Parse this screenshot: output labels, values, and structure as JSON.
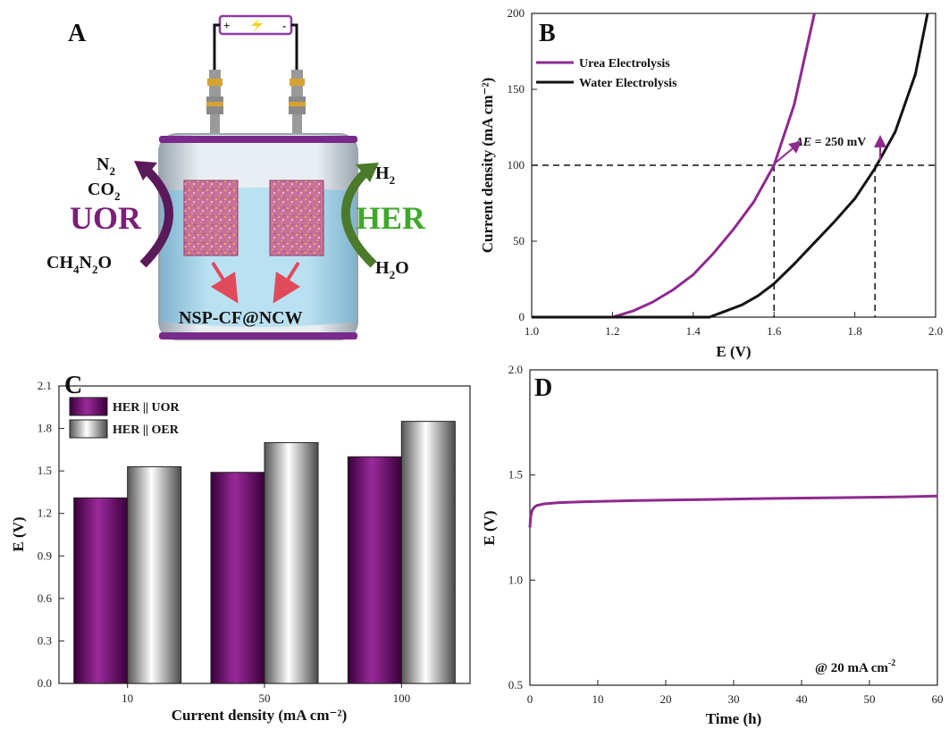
{
  "panels": {
    "A": {
      "label": "A",
      "left_products": [
        "N",
        "CO"
      ],
      "left_reaction": "UOR",
      "left_reactant": "CH",
      "right_product": "H",
      "right_reaction": "HER",
      "right_reactant": "H",
      "electrode_label": "NSP-CF@NCW",
      "battery_plus": "+",
      "battery_minus": "-",
      "colors": {
        "uor": "#7a1f78",
        "her": "#3fa82b",
        "arrow_left": "#5a1a5a",
        "arrow_right": "#4a7a2a",
        "electrolyte": "#a8d8ee"
      }
    },
    "B": {
      "label": "B",
      "annotation_prefix": "ΔE",
      "annotation_value": "250 mV"
    },
    "C": {
      "label": "C"
    },
    "D": {
      "label": "D",
      "annotation": "@ 20 mA cm"
    }
  },
  "chart_data": [
    {
      "panel": "B",
      "type": "line",
      "xlabel": "E (V)",
      "ylabel": "Current density (mA cm⁻²)",
      "xlim": [
        1.0,
        2.0
      ],
      "ylim": [
        0,
        200
      ],
      "xticks": [
        "1.0",
        "1.2",
        "1.4",
        "1.6",
        "1.8",
        "2.0"
      ],
      "yticks": [
        "0",
        "50",
        "100",
        "150",
        "200"
      ],
      "legend_position": "top-left",
      "reference_lines": {
        "y": 100,
        "x": [
          1.6,
          1.85
        ]
      },
      "series": [
        {
          "name": "Urea Electrolysis",
          "color": "#8e2a8e",
          "x": [
            1.0,
            1.2,
            1.25,
            1.3,
            1.35,
            1.4,
            1.45,
            1.5,
            1.55,
            1.6,
            1.65,
            1.7
          ],
          "y": [
            0,
            0,
            4,
            10,
            18,
            28,
            42,
            58,
            76,
            100,
            140,
            200
          ]
        },
        {
          "name": "Water Electrolysis",
          "color": "#111111",
          "x": [
            1.0,
            1.44,
            1.48,
            1.52,
            1.56,
            1.6,
            1.65,
            1.7,
            1.75,
            1.8,
            1.85,
            1.9,
            1.95,
            1.98
          ],
          "y": [
            0,
            0,
            4,
            8,
            14,
            22,
            35,
            49,
            63,
            78,
            98,
            122,
            160,
            200
          ]
        }
      ]
    },
    {
      "panel": "C",
      "type": "bar",
      "xlabel": "Current density (mA cm⁻²)",
      "ylabel": "E (V)",
      "ylim": [
        0,
        2.1
      ],
      "yticks": [
        "0.0",
        "0.3",
        "0.6",
        "0.9",
        "1.2",
        "1.5",
        "1.8",
        "2.1"
      ],
      "categories": [
        "10",
        "50",
        "100"
      ],
      "legend_position": "top-left",
      "series": [
        {
          "name": "HER || UOR",
          "color": "#6e0a6e",
          "values": [
            1.31,
            1.49,
            1.6
          ]
        },
        {
          "name": "HER || OER",
          "color": "#d8d8d8",
          "values": [
            1.53,
            1.7,
            1.85
          ]
        }
      ]
    },
    {
      "panel": "D",
      "type": "line",
      "xlabel": "Time (h)",
      "ylabel": "E (V)",
      "xlim": [
        0,
        60
      ],
      "ylim": [
        0.5,
        2.0
      ],
      "xticks": [
        "0",
        "10",
        "20",
        "30",
        "40",
        "50",
        "60"
      ],
      "yticks": [
        "0.5",
        "1.0",
        "1.5",
        "2.0"
      ],
      "series": [
        {
          "color": "#8e2a8e",
          "x": [
            0,
            0.1,
            0.3,
            0.6,
            1,
            2,
            4,
            8,
            15,
            25,
            35,
            45,
            55,
            60
          ],
          "y": [
            1.25,
            1.3,
            1.33,
            1.345,
            1.355,
            1.362,
            1.368,
            1.373,
            1.378,
            1.383,
            1.388,
            1.392,
            1.396,
            1.4
          ]
        }
      ]
    }
  ]
}
